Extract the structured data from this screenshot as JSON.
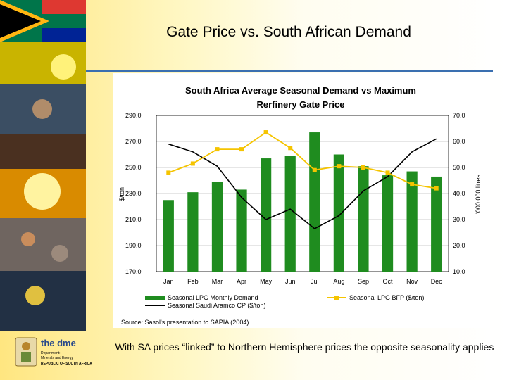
{
  "slide": {
    "title": "Gate Price vs. South African Demand",
    "source": "Source: Sasol's presentation to SAPIA (2004)",
    "footer_text": "With SA prices “linked” to Northern Hemisphere prices the opposite seasonality applies",
    "logo_text": "the dme",
    "logo_caption_1": "Department:",
    "logo_caption_2": "Minerals and Energy",
    "logo_caption_3": "REPUBLIC OF SOUTH AFRICA"
  },
  "colors": {
    "bar": "#1f8c1f",
    "bfp": "#f5c400",
    "sa_cp": "#000000",
    "rule": "#3a6fb0"
  },
  "chart_data": {
    "type": "bar",
    "title": "South Africa Average Seasonal Demand vs  Maximum Rerfinery Gate Price",
    "title_line1": "South Africa Average Seasonal Demand vs  Maximum",
    "title_line2": "Rerfinery Gate Price",
    "categories": [
      "Jan",
      "Feb",
      "Mar",
      "Apr",
      "May",
      "Jun",
      "Jul",
      "Aug",
      "Sep",
      "Oct",
      "Nov",
      "Dec"
    ],
    "ylabel_left": "$/ton",
    "ylabel_right": "'000 000 litres",
    "ylim_left": [
      170,
      290
    ],
    "ylim_right": [
      10,
      70
    ],
    "yticks_left": [
      "290.0",
      "270.0",
      "250.0",
      "230.0",
      "210.0",
      "190.0",
      "170.0"
    ],
    "yticks_right": [
      "70.0",
      "60.0",
      "50.0",
      "40.0",
      "30.0",
      "20.0",
      "10.0"
    ],
    "grid": true,
    "legend_position": "bottom",
    "series": [
      {
        "name": "Seasonal LPG Monthly Demand",
        "type": "bar",
        "axis": "right",
        "values": [
          37.5,
          40.5,
          44.5,
          41.5,
          53.5,
          54.5,
          63.5,
          55.0,
          50.5,
          47.0,
          48.5,
          46.5
        ]
      },
      {
        "name": "Seasonal LPG BFP ($/ton)",
        "type": "line",
        "axis": "left",
        "values": [
          246,
          253,
          264,
          264,
          277,
          265,
          248,
          251,
          250,
          246,
          237,
          234
        ]
      },
      {
        "name": "Seasonal Saudi Aramco CP ($/ton)",
        "type": "line",
        "axis": "left",
        "values": [
          268,
          262,
          251,
          227,
          210,
          218,
          203,
          213,
          232,
          243,
          262,
          272
        ]
      }
    ]
  }
}
